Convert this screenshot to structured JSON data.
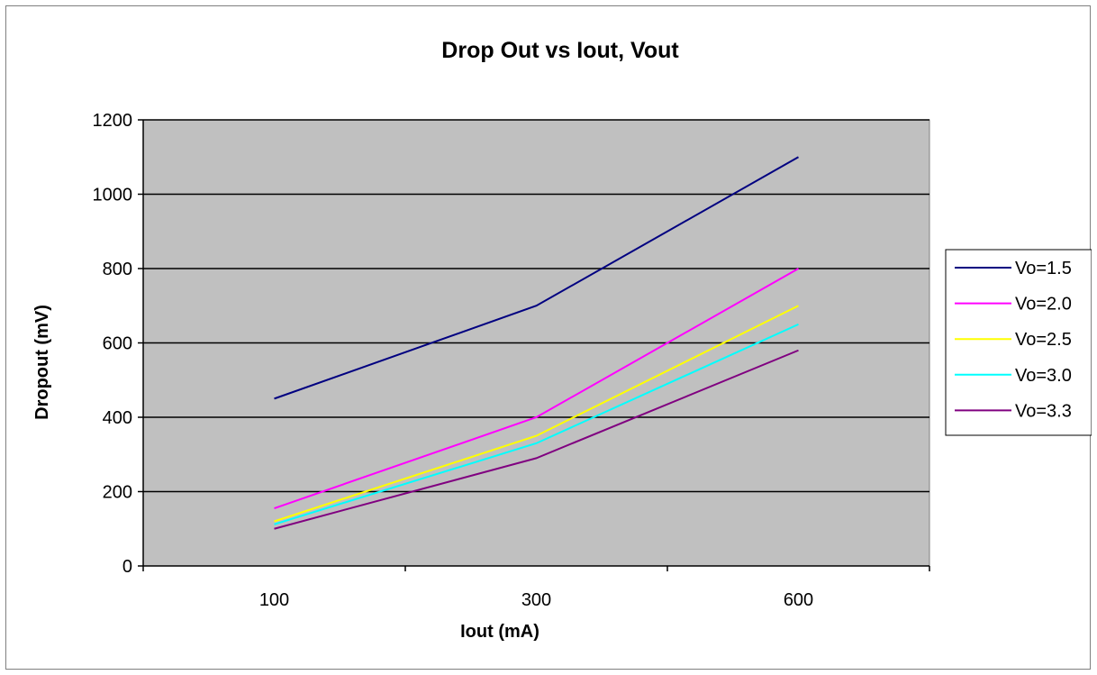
{
  "chart_data": {
    "type": "line",
    "title": "Drop Out vs Iout, Vout",
    "xlabel": "Iout (mA)",
    "ylabel": "Dropout (mV)",
    "categories": [
      "100",
      "300",
      "600"
    ],
    "ylim": [
      0,
      1200
    ],
    "yticks": [
      "0",
      "200",
      "400",
      "600",
      "800",
      "1000",
      "1200"
    ],
    "grid": true,
    "legend_position": "right",
    "plot_background": "#c0c0c0",
    "series": [
      {
        "name": "Vo=1.5",
        "color": "#000080",
        "values": [
          450,
          700,
          1100
        ]
      },
      {
        "name": "Vo=2.0",
        "color": "#ff00ff",
        "values": [
          155,
          400,
          800
        ]
      },
      {
        "name": "Vo=2.5",
        "color": "#ffff00",
        "values": [
          120,
          350,
          700
        ]
      },
      {
        "name": "Vo=3.0",
        "color": "#00ffff",
        "values": [
          112,
          330,
          650
        ]
      },
      {
        "name": "Vo=3.3",
        "color": "#800080",
        "values": [
          100,
          290,
          580
        ]
      }
    ]
  }
}
